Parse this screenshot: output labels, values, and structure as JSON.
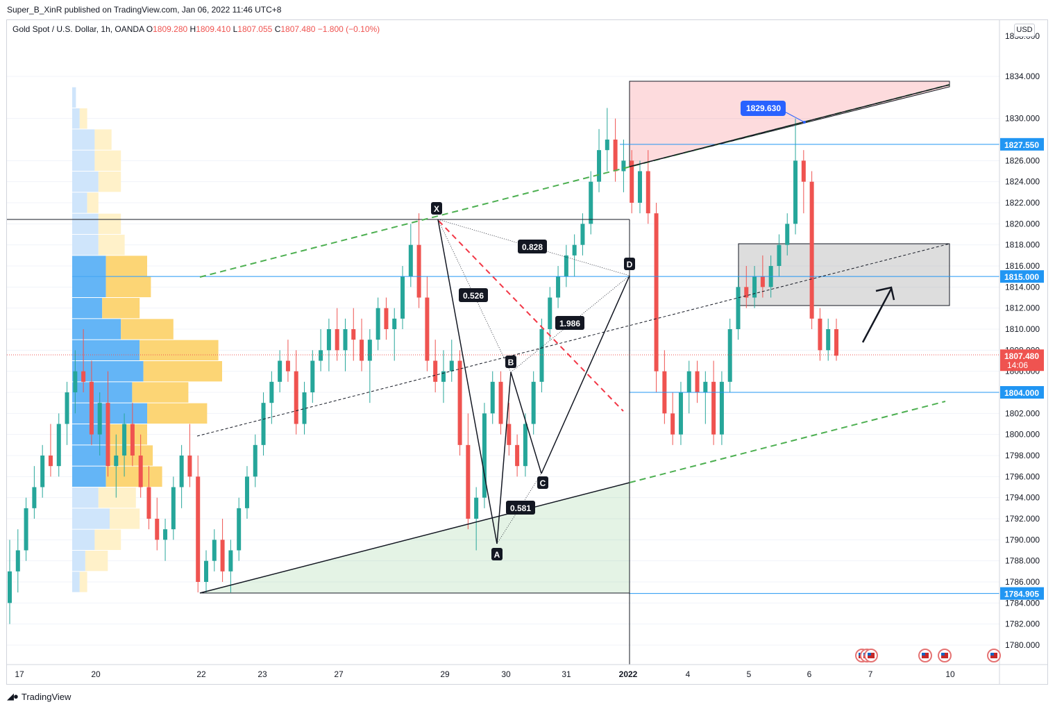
{
  "header": {
    "publisher": "Super_B_XinR published on TradingView.com, Jan 06, 2022 11:46 UTC+8"
  },
  "legend": {
    "symbol": "Gold Spot / U.S. Dollar, 1h, OANDA",
    "o_label": "O",
    "o_value": "1809.280",
    "h_label": "H",
    "h_value": "1809.410",
    "l_label": "L",
    "l_value": "1807.055",
    "c_label": "C",
    "c_value": "1807.480",
    "change": "−1.800 (−0.10%)"
  },
  "currency": "USD",
  "footer": {
    "brand": "TradingView"
  },
  "colors": {
    "up": "#26a69a",
    "down": "#ef5350",
    "blue": "#2962ff",
    "price_line": "#2196f3",
    "green_dash": "#4caf50",
    "red_dash": "#f23645"
  },
  "chart_data": {
    "type": "candlestick",
    "symbol": "XAUUSD",
    "interval": "1h",
    "ylim": [
      1778,
      1838
    ],
    "y_ticks": [
      1780,
      1782,
      1784,
      1786,
      1788,
      1790,
      1792,
      1794,
      1796,
      1798,
      1800,
      1802,
      1804,
      1806,
      1808,
      1810,
      1812,
      1814,
      1816,
      1818,
      1820,
      1822,
      1824,
      1826,
      1830,
      1834
    ],
    "x_ticks": [
      "17",
      "20",
      "22",
      "23",
      "27",
      "29",
      "30",
      "31",
      "2022",
      "4",
      "5",
      "6",
      "7",
      "10"
    ],
    "price_labels": [
      {
        "value": "1829.630",
        "style": "callout"
      },
      {
        "value": "1827.550"
      },
      {
        "value": "1815.000"
      },
      {
        "value": "1807.480",
        "extra": "14:06",
        "style": "current"
      },
      {
        "value": "1804.000"
      },
      {
        "value": "1784.905"
      }
    ],
    "pattern": {
      "points": [
        {
          "label": "X",
          "x": "Dec 29",
          "y": 1820.3
        },
        {
          "label": "A",
          "x": "Dec 30",
          "y": 1789.6
        },
        {
          "label": "B",
          "x": "Dec 30",
          "y": 1805.6
        },
        {
          "label": "C",
          "x": "Dec 31",
          "y": 1796.4
        },
        {
          "label": "D",
          "x": "Jan 1",
          "y": 1815.0
        }
      ],
      "ratios": [
        "0.828",
        "0.526",
        "1.986",
        "0.581"
      ]
    },
    "candles": [
      [
        1784,
        1790,
        1782,
        1787
      ],
      [
        1787,
        1791,
        1785,
        1789
      ],
      [
        1789,
        1794,
        1788,
        1793
      ],
      [
        1793,
        1797,
        1792,
        1795
      ],
      [
        1795,
        1799,
        1794,
        1798
      ],
      [
        1798,
        1801,
        1796,
        1797
      ],
      [
        1797,
        1802,
        1796,
        1801
      ],
      [
        1801,
        1805,
        1799,
        1804
      ],
      [
        1804,
        1808,
        1802,
        1806
      ],
      [
        1806,
        1810,
        1804,
        1805
      ],
      [
        1805,
        1807,
        1799,
        1800
      ],
      [
        1800,
        1804,
        1798,
        1803
      ],
      [
        1803,
        1806,
        1796,
        1797
      ],
      [
        1797,
        1800,
        1794,
        1798
      ],
      [
        1798,
        1802,
        1796,
        1801
      ],
      [
        1801,
        1803,
        1797,
        1798
      ],
      [
        1798,
        1800,
        1794,
        1795
      ],
      [
        1795,
        1797,
        1791,
        1792
      ],
      [
        1792,
        1794,
        1789,
        1790
      ],
      [
        1790,
        1792,
        1788,
        1791
      ],
      [
        1791,
        1796,
        1790,
        1795
      ],
      [
        1795,
        1799,
        1793,
        1798
      ],
      [
        1798,
        1801,
        1795,
        1796
      ],
      [
        1796,
        1798,
        1785,
        1786
      ],
      [
        1786,
        1789,
        1785,
        1788
      ],
      [
        1788,
        1791,
        1787,
        1790
      ],
      [
        1790,
        1792,
        1786,
        1787
      ],
      [
        1787,
        1790,
        1785,
        1789
      ],
      [
        1789,
        1794,
        1788,
        1793
      ],
      [
        1793,
        1797,
        1792,
        1796
      ],
      [
        1796,
        1800,
        1795,
        1799
      ],
      [
        1799,
        1804,
        1798,
        1803
      ],
      [
        1803,
        1806,
        1801,
        1805
      ],
      [
        1805,
        1808,
        1804,
        1807
      ],
      [
        1807,
        1809,
        1805,
        1806
      ],
      [
        1806,
        1808,
        1800,
        1801
      ],
      [
        1801,
        1805,
        1800,
        1804
      ],
      [
        1804,
        1808,
        1803,
        1807
      ],
      [
        1807,
        1810,
        1806,
        1808
      ],
      [
        1808,
        1811,
        1806,
        1810
      ],
      [
        1810,
        1812,
        1807,
        1808
      ],
      [
        1808,
        1811,
        1806,
        1810
      ],
      [
        1810,
        1812,
        1807,
        1809
      ],
      [
        1809,
        1811,
        1806,
        1807
      ],
      [
        1807,
        1810,
        1803,
        1809
      ],
      [
        1809,
        1813,
        1808,
        1812
      ],
      [
        1812,
        1813,
        1809,
        1810
      ],
      [
        1810,
        1812,
        1807,
        1811
      ],
      [
        1811,
        1816,
        1810,
        1815
      ],
      [
        1815,
        1820,
        1814,
        1818
      ],
      [
        1818,
        1821,
        1812,
        1813
      ],
      [
        1813,
        1815,
        1806,
        1807
      ],
      [
        1807,
        1809,
        1804,
        1805
      ],
      [
        1805,
        1808,
        1803,
        1806
      ],
      [
        1806,
        1809,
        1805,
        1807
      ],
      [
        1807,
        1808,
        1798,
        1799
      ],
      [
        1799,
        1802,
        1791,
        1792
      ],
      [
        1792,
        1795,
        1789,
        1794
      ],
      [
        1794,
        1803,
        1793,
        1802
      ],
      [
        1802,
        1806,
        1801,
        1805
      ],
      [
        1805,
        1806,
        1800,
        1801
      ],
      [
        1801,
        1803,
        1798,
        1799
      ],
      [
        1799,
        1800,
        1796,
        1797
      ],
      [
        1797,
        1802,
        1796,
        1801
      ],
      [
        1801,
        1806,
        1800,
        1805
      ],
      [
        1805,
        1811,
        1804,
        1810
      ],
      [
        1810,
        1814,
        1809,
        1813
      ],
      [
        1813,
        1816,
        1812,
        1815
      ],
      [
        1815,
        1818,
        1814,
        1817
      ],
      [
        1817,
        1819,
        1815,
        1818
      ],
      [
        1818,
        1821,
        1817,
        1820
      ],
      [
        1820,
        1825,
        1819,
        1824
      ],
      [
        1824,
        1829,
        1823,
        1827
      ],
      [
        1827,
        1831,
        1825,
        1828
      ],
      [
        1828,
        1830,
        1824,
        1825
      ],
      [
        1825,
        1828,
        1823,
        1826
      ],
      [
        1826,
        1827,
        1821,
        1822
      ],
      [
        1822,
        1826,
        1821,
        1825
      ],
      [
        1825,
        1827,
        1820,
        1821
      ],
      [
        1821,
        1822,
        1804,
        1806
      ],
      [
        1806,
        1808,
        1801,
        1802
      ],
      [
        1802,
        1804,
        1799,
        1800
      ],
      [
        1800,
        1805,
        1799,
        1804
      ],
      [
        1804,
        1807,
        1802,
        1806
      ],
      [
        1806,
        1807,
        1803,
        1804
      ],
      [
        1804,
        1806,
        1801,
        1805
      ],
      [
        1805,
        1807,
        1799,
        1800
      ],
      [
        1800,
        1806,
        1799,
        1805
      ],
      [
        1805,
        1811,
        1804,
        1810
      ],
      [
        1810,
        1815,
        1809,
        1814
      ],
      [
        1814,
        1816,
        1812,
        1813
      ],
      [
        1813,
        1816,
        1812,
        1815
      ],
      [
        1815,
        1817,
        1813,
        1814
      ],
      [
        1814,
        1817,
        1813,
        1816
      ],
      [
        1816,
        1819,
        1815,
        1818
      ],
      [
        1818,
        1821,
        1817,
        1820
      ],
      [
        1820,
        1830,
        1819,
        1826
      ],
      [
        1826,
        1827,
        1821,
        1824
      ],
      [
        1824,
        1825,
        1810,
        1811
      ],
      [
        1811,
        1812,
        1807,
        1808
      ],
      [
        1808,
        1811,
        1807,
        1810
      ],
      [
        1810,
        1811,
        1807,
        1807.48
      ]
    ],
    "volume_profile": [
      {
        "price": 1786,
        "buy": 4,
        "sell": 4
      },
      {
        "price": 1788,
        "buy": 7,
        "sell": 12
      },
      {
        "price": 1790,
        "buy": 12,
        "sell": 14
      },
      {
        "price": 1792,
        "buy": 20,
        "sell": 16
      },
      {
        "price": 1794,
        "buy": 14,
        "sell": 20
      },
      {
        "price": 1796,
        "buy": 18,
        "sell": 30
      },
      {
        "price": 1798,
        "buy": 18,
        "sell": 25
      },
      {
        "price": 1800,
        "buy": 18,
        "sell": 22
      },
      {
        "price": 1802,
        "buy": 40,
        "sell": 32
      },
      {
        "price": 1804,
        "buy": 32,
        "sell": 30
      },
      {
        "price": 1806,
        "buy": 38,
        "sell": 42
      },
      {
        "price": 1808,
        "buy": 36,
        "sell": 42
      },
      {
        "price": 1810,
        "buy": 26,
        "sell": 28
      },
      {
        "price": 1812,
        "buy": 16,
        "sell": 20
      },
      {
        "price": 1814,
        "buy": 18,
        "sell": 24
      },
      {
        "price": 1816,
        "buy": 18,
        "sell": 22
      },
      {
        "price": 1818,
        "buy": 14,
        "sell": 14
      },
      {
        "price": 1820,
        "buy": 14,
        "sell": 12
      },
      {
        "price": 1822,
        "buy": 8,
        "sell": 6
      },
      {
        "price": 1824,
        "buy": 14,
        "sell": 12
      },
      {
        "price": 1826,
        "buy": 12,
        "sell": 14
      },
      {
        "price": 1828,
        "buy": 12,
        "sell": 9
      },
      {
        "price": 1830,
        "buy": 4,
        "sell": 4
      },
      {
        "price": 1832,
        "buy": 2,
        "sell": 0
      }
    ]
  }
}
